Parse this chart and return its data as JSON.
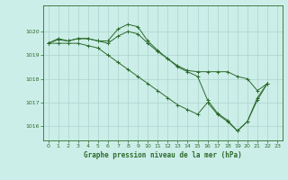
{
  "title": "Graphe pression niveau de la mer (hPa)",
  "background_color": "#cceee8",
  "grid_color": "#aad4ce",
  "line_color": "#2d6b2d",
  "xlim": [
    -0.5,
    23.5
  ],
  "ylim": [
    1015.4,
    1021.1
  ],
  "yticks": [
    1016,
    1017,
    1018,
    1019,
    1020
  ],
  "xticks": [
    0,
    1,
    2,
    3,
    4,
    5,
    6,
    7,
    8,
    9,
    10,
    11,
    12,
    13,
    14,
    15,
    16,
    17,
    18,
    19,
    20,
    21,
    22,
    23
  ],
  "series": [
    [
      1019.5,
      1019.7,
      1019.6,
      1019.7,
      1019.7,
      1019.6,
      1019.6,
      1020.1,
      1020.3,
      1020.2,
      1019.6,
      1019.2,
      1018.85,
      1018.55,
      1018.35,
      1018.3,
      1018.3,
      1018.3,
      1018.3,
      1018.1,
      1018.0,
      1017.5,
      1017.8,
      null
    ],
    [
      1019.5,
      1019.65,
      1019.6,
      1019.7,
      1019.7,
      1019.6,
      1019.5,
      1019.8,
      1020.0,
      1019.9,
      1019.5,
      1019.15,
      1018.85,
      1018.5,
      1018.3,
      1018.1,
      1017.1,
      1016.55,
      1016.25,
      1015.8,
      1016.2,
      1017.1,
      1017.8,
      null
    ],
    [
      1019.5,
      1019.5,
      1019.5,
      1019.5,
      1019.4,
      1019.3,
      1019.0,
      1018.7,
      1018.4,
      1018.1,
      1017.8,
      1017.5,
      1017.2,
      1016.9,
      1016.7,
      1016.5,
      1017.0,
      1016.5,
      1016.2,
      1015.8,
      1016.2,
      1017.2,
      1017.8,
      null
    ]
  ]
}
